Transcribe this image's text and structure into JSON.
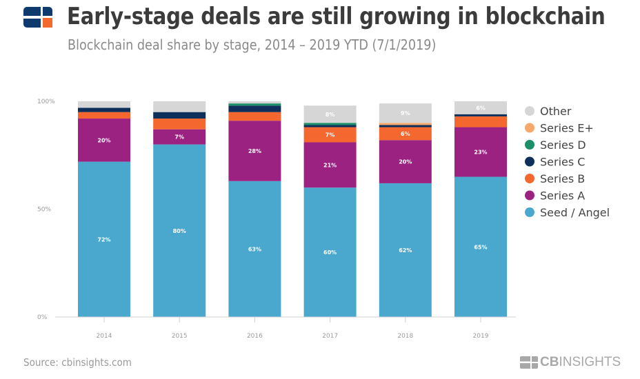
{
  "header": {
    "title": "Early-stage deals are still growing in blockchain",
    "subtitle": "Blockchain deal share by stage, 2014 – 2019 YTD (7/1/2019)"
  },
  "footer": {
    "source": "Source: cbinsights.com",
    "brand_bold": "CB",
    "brand_light": "INSIGHTS"
  },
  "colors": {
    "logo_navy": "#0f3a6e",
    "logo_orange": "#f26a2e",
    "axis": "#cfcfcf",
    "tick_text": "#9a9a9a"
  },
  "chart_data": {
    "type": "bar",
    "stacked": true,
    "title": "Early-stage deals are still growing in blockchain",
    "subtitle": "Blockchain deal share by stage, 2014 – 2019 YTD (7/1/2019)",
    "xlabel": "",
    "ylabel": "",
    "ylim": [
      0,
      100
    ],
    "yticks": [
      0,
      50,
      100
    ],
    "ytick_labels": [
      "0%",
      "50%",
      "100%"
    ],
    "grid": false,
    "legend_position": "right",
    "categories": [
      "2014",
      "2015",
      "2016",
      "2017",
      "2018",
      "2019"
    ],
    "series": [
      {
        "name": "Seed / Angel",
        "color": "#4aa8cf",
        "values": [
          72,
          80,
          63,
          60,
          62,
          65
        ],
        "labels": [
          "72%",
          "80%",
          "63%",
          "60%",
          "62%",
          "65%"
        ]
      },
      {
        "name": "Series A",
        "color": "#9c2281",
        "values": [
          20,
          7,
          28,
          21,
          20,
          23
        ],
        "labels": [
          "20%",
          "7%",
          "28%",
          "21%",
          "20%",
          "23%"
        ]
      },
      {
        "name": "Series B",
        "color": "#f4682f",
        "values": [
          3,
          5,
          4,
          7,
          6,
          5
        ],
        "labels": [
          "",
          "",
          "",
          "7%",
          "6%",
          ""
        ]
      },
      {
        "name": "Series C",
        "color": "#0e2f5a",
        "values": [
          2,
          3,
          3,
          1,
          1,
          1
        ],
        "labels": [
          "",
          "",
          "",
          "",
          "",
          ""
        ]
      },
      {
        "name": "Series D",
        "color": "#1a8f6a",
        "values": [
          0,
          0,
          1,
          1,
          0,
          0
        ],
        "labels": [
          "",
          "",
          "",
          "",
          "",
          ""
        ]
      },
      {
        "name": "Series E+",
        "color": "#f7a96b",
        "values": [
          0,
          0,
          0,
          0,
          1,
          0
        ],
        "labels": [
          "",
          "",
          "",
          "",
          "",
          ""
        ]
      },
      {
        "name": "Other",
        "color": "#d6d6d6",
        "values": [
          3,
          5,
          1,
          8,
          9,
          6
        ],
        "labels": [
          "",
          "",
          "",
          "8%",
          "9%",
          "6%"
        ]
      }
    ],
    "legend_order": [
      "Other",
      "Series E+",
      "Series D",
      "Series C",
      "Series B",
      "Series A",
      "Seed / Angel"
    ]
  }
}
